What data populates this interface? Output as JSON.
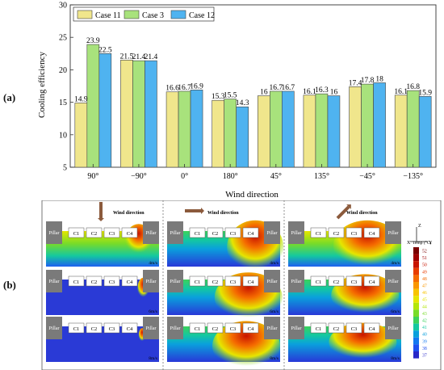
{
  "panel_a_label": "(a)",
  "panel_b_label": "(b)",
  "chart_data": {
    "type": "bar",
    "title": "",
    "xlabel": "Wind direction",
    "ylabel": "Cooling efficiency",
    "ylim": [
      5,
      30
    ],
    "yticks": [
      "5",
      "10",
      "15",
      "20",
      "25",
      "30"
    ],
    "categories": [
      "90°",
      "−90°",
      "0°",
      "180°",
      "45°",
      "135°",
      "−45°",
      "−135°"
    ],
    "series": [
      {
        "name": "Case 11",
        "color": "#f0e68c",
        "values": [
          14.9,
          21.5,
          16.6,
          15.3,
          16,
          16.1,
          17.4,
          16.1
        ],
        "labels": [
          "14.9",
          "21.5",
          "16.6",
          "15.3",
          "16",
          "16.1",
          "17.4",
          "16.1"
        ]
      },
      {
        "name": "Case 3",
        "color": "#a8e27c",
        "values": [
          23.9,
          21.4,
          16.7,
          15.5,
          16.7,
          16.3,
          17.8,
          16.8
        ],
        "labels": [
          "23.9",
          "21.4",
          "16.7",
          "15.5",
          "16.7",
          "16.3",
          "17.8",
          "16.8"
        ]
      },
      {
        "name": "Case 12",
        "color": "#4fb3f0",
        "values": [
          22.5,
          21.4,
          16.9,
          14.3,
          16.7,
          16,
          18,
          15.9
        ],
        "labels": [
          "22.5",
          "21.4",
          "16.9",
          "14.3",
          "16.7",
          "16",
          "18",
          "15.9"
        ]
      }
    ],
    "legend_position": "top-left",
    "grid": false
  },
  "panel_b": {
    "wind_label": "Wind direction",
    "pillar_label": "Pillar",
    "containers": [
      "C1",
      "C2",
      "C3",
      "C4"
    ],
    "rows": [
      {
        "speeds": [
          "4m/s",
          "4m/s",
          "4m/s"
        ]
      },
      {
        "speeds": [
          "6m/s",
          "6m/s",
          "6m/s"
        ]
      },
      {
        "speeds": [
          "8m/s",
          "8m/s",
          "8m/s"
        ]
      }
    ],
    "axis": {
      "z": "Z",
      "x": "X",
      "y": "Y"
    },
    "colorbar": {
      "title": "Temp (°C)",
      "ticks": [
        "52",
        "51",
        "50",
        "49",
        "48",
        "47",
        "46",
        "45",
        "44",
        "43",
        "42",
        "41",
        "40",
        "39",
        "38",
        "37"
      ],
      "colors": [
        "#7a0000",
        "#a00000",
        "#c81400",
        "#e83c00",
        "#f56a00",
        "#fa9600",
        "#f8c400",
        "#e6e600",
        "#b4e60a",
        "#78dc28",
        "#3cd25a",
        "#14c8a0",
        "#0aa0dc",
        "#1478f0",
        "#1e50f0",
        "#2828c8"
      ]
    }
  }
}
